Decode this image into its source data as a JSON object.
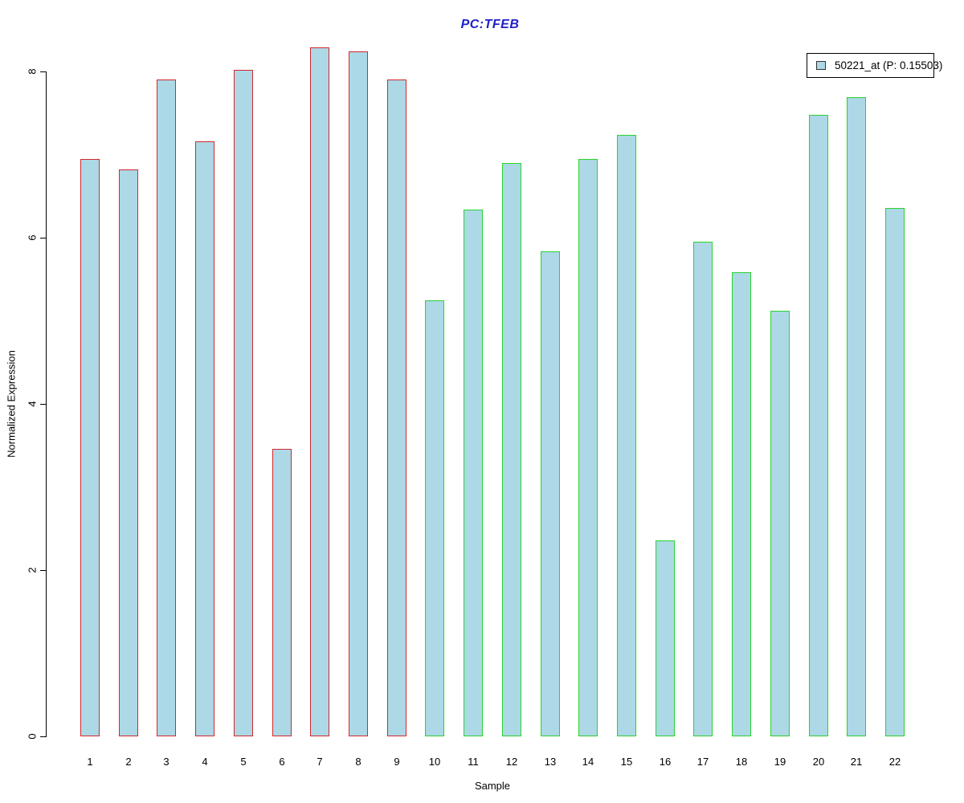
{
  "title": "PC:TFEB",
  "legend": {
    "label": "50221_at (P: 0.15503)"
  },
  "axes": {
    "ylabel": "Normalized Expression",
    "xlabel": "Sample",
    "yticks": [
      0,
      2,
      4,
      6,
      8
    ]
  },
  "colors": {
    "title": "#1F1FC8",
    "bar_fill": "#ADD8E6",
    "red_border": "#D2282E",
    "green_border": "#29D32E",
    "axis": "#000000"
  },
  "chart_data": {
    "type": "bar",
    "title": "PC:TFEB",
    "xlabel": "Sample",
    "ylabel": "Normalized Expression",
    "ylim": [
      0,
      8.3
    ],
    "yticks": [
      0,
      2,
      4,
      6,
      8
    ],
    "grid": false,
    "legend_position": "top-right",
    "legend_entries": [
      "50221_at (P: 0.15503)"
    ],
    "group_note": "samples 1-9 have red bar borders, samples 10-22 have green bar borders; all bars share a light-blue fill",
    "categories": [
      "1",
      "2",
      "3",
      "4",
      "5",
      "6",
      "7",
      "8",
      "9",
      "10",
      "11",
      "12",
      "13",
      "14",
      "15",
      "16",
      "17",
      "18",
      "19",
      "20",
      "21",
      "22"
    ],
    "values": [
      6.95,
      6.82,
      7.9,
      7.16,
      8.02,
      3.46,
      8.29,
      8.24,
      7.9,
      5.25,
      6.34,
      6.9,
      5.84,
      6.95,
      7.24,
      2.36,
      5.95,
      5.58,
      5.12,
      7.48,
      7.69,
      6.36
    ],
    "bars": [
      {
        "label": "1",
        "value": 6.95,
        "group": "red"
      },
      {
        "label": "2",
        "value": 6.82,
        "group": "red"
      },
      {
        "label": "3",
        "value": 7.9,
        "group": "red"
      },
      {
        "label": "4",
        "value": 7.16,
        "group": "red"
      },
      {
        "label": "5",
        "value": 8.02,
        "group": "red"
      },
      {
        "label": "6",
        "value": 3.46,
        "group": "red"
      },
      {
        "label": "7",
        "value": 8.29,
        "group": "red"
      },
      {
        "label": "8",
        "value": 8.24,
        "group": "red"
      },
      {
        "label": "9",
        "value": 7.9,
        "group": "red"
      },
      {
        "label": "10",
        "value": 5.25,
        "group": "green"
      },
      {
        "label": "11",
        "value": 6.34,
        "group": "green"
      },
      {
        "label": "12",
        "value": 6.9,
        "group": "green"
      },
      {
        "label": "13",
        "value": 5.84,
        "group": "green"
      },
      {
        "label": "14",
        "value": 6.95,
        "group": "green"
      },
      {
        "label": "15",
        "value": 7.24,
        "group": "green"
      },
      {
        "label": "16",
        "value": 2.36,
        "group": "green"
      },
      {
        "label": "17",
        "value": 5.95,
        "group": "green"
      },
      {
        "label": "18",
        "value": 5.58,
        "group": "green"
      },
      {
        "label": "19",
        "value": 5.12,
        "group": "green"
      },
      {
        "label": "20",
        "value": 7.48,
        "group": "green"
      },
      {
        "label": "21",
        "value": 7.69,
        "group": "green"
      },
      {
        "label": "22",
        "value": 6.36,
        "group": "green"
      }
    ]
  }
}
